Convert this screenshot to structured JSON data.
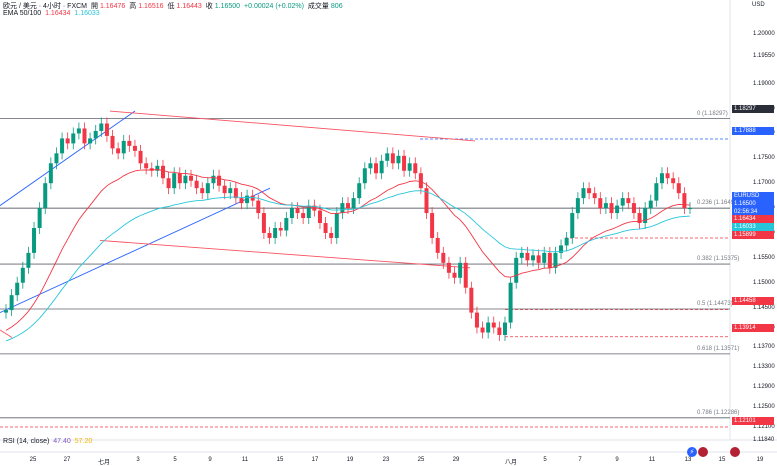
{
  "header": {
    "symbol_line": "欧元 / 美元 · 4小时 · FXCM",
    "open_label": "開",
    "open_value": "1.16476",
    "high_label": "高",
    "high_value": "1.16516",
    "low_label": "低",
    "low_value": "1.16443",
    "close_label": "收",
    "close_value": "1.16500",
    "change": "+0.00024 (+0.02%)",
    "volume_label": "成交量",
    "volume_value": "806",
    "ema_label": "EMA 50/100",
    "ema50_value": "1.16434",
    "ema100_value": "1.16033",
    "rsi_label": "RSI (14, close)",
    "rsi_value": "47.40",
    "rsi_ma_value": "57.20"
  },
  "axis": {
    "currency": "USD",
    "price_labels": [
      "1.20000",
      "1.19550",
      "1.19000",
      "1.18500",
      "1.18000",
      "1.17500",
      "1.17000",
      "1.16500",
      "1.16000",
      "1.15500",
      "1.15000",
      "1.14500",
      "1.14100",
      "1.13700",
      "1.13300",
      "1.12900",
      "1.12500",
      "1.12100",
      "1.11840"
    ],
    "date_labels": [
      "25",
      "27",
      "七月",
      "3",
      "5",
      "9",
      "11",
      "15",
      "17",
      "19",
      "23",
      "25",
      "29",
      "八月",
      "5",
      "7",
      "9",
      "11",
      "13",
      "15",
      "19"
    ]
  },
  "fib_levels": [
    {
      "label": "0 (1.18297)"
    },
    {
      "label": "0.236 (1.16497)"
    },
    {
      "label": "0.382 (1.15375)"
    },
    {
      "label": "0.5 (1.14473)"
    },
    {
      "label": "0.618 (1.13571)"
    },
    {
      "label": "0.786 (1.12286)"
    }
  ],
  "price_tags": [
    {
      "text": "1.18297",
      "color": "#2a2e39"
    },
    {
      "text": "1.17888",
      "color": "#2962ff"
    },
    {
      "text": "EURUSD",
      "color": "#2962ff"
    },
    {
      "text": "1.16500",
      "color": "#2962ff"
    },
    {
      "text": "02:56:34",
      "color": "#2962ff"
    },
    {
      "text": "1.16434",
      "color": "#f23645"
    },
    {
      "text": "1.16033",
      "color": "#26c6da"
    },
    {
      "text": "1.15899",
      "color": "#f23645"
    },
    {
      "text": "1.14458",
      "color": "#f23645"
    },
    {
      "text": "1.13914",
      "color": "#f23645"
    },
    {
      "text": "1.12101",
      "color": "#f23645"
    }
  ],
  "colors": {
    "up": "#089981",
    "down": "#f23645",
    "ema50": "#f23645",
    "ema100": "#26c6da",
    "trend_blue": "#2962ff",
    "channel_pink": "#f7525f",
    "fib_line": "#5d606b"
  },
  "chart_data": {
    "type": "candlestick",
    "symbol": "EURUSD",
    "timeframe": "4h",
    "ylim": [
      1.1184,
      1.204
    ],
    "fib_levels": [
      1.18297,
      1.16497,
      1.15375,
      1.14473,
      1.13571,
      1.12286
    ],
    "marked_levels": [
      1.17888,
      1.15899,
      1.14458,
      1.13914,
      1.12101
    ],
    "last_price": 1.165,
    "ema50_last": 1.16434,
    "ema100_last": 1.16033,
    "closes": [
      1.1445,
      1.1475,
      1.15,
      1.153,
      1.156,
      1.161,
      1.165,
      1.17,
      1.174,
      1.176,
      1.179,
      1.178,
      1.18,
      1.181,
      1.178,
      1.179,
      1.1805,
      1.182,
      1.1795,
      1.177,
      1.176,
      1.1785,
      1.1775,
      1.1765,
      1.174,
      1.173,
      1.1725,
      1.1735,
      1.171,
      1.169,
      1.172,
      1.17,
      1.1715,
      1.1705,
      1.169,
      1.168,
      1.17,
      1.1715,
      1.1695,
      1.168,
      1.169,
      1.167,
      1.166,
      1.1675,
      1.1665,
      1.164,
      1.16,
      1.159,
      1.161,
      1.1605,
      1.163,
      1.165,
      1.164,
      1.163,
      1.1655,
      1.1645,
      1.162,
      1.16,
      1.159,
      1.164,
      1.166,
      1.165,
      1.167,
      1.17,
      1.173,
      1.174,
      1.172,
      1.1745,
      1.176,
      1.174,
      1.1755,
      1.1725,
      1.174,
      1.172,
      1.169,
      1.164,
      1.159,
      1.156,
      1.154,
      1.152,
      1.151,
      1.154,
      1.149,
      1.144,
      1.141,
      1.14,
      1.142,
      1.141,
      1.1395,
      1.142,
      1.15,
      1.155,
      1.156,
      1.1545,
      1.1555,
      1.154,
      1.156,
      1.153,
      1.156,
      1.1575,
      1.159,
      1.164,
      1.167,
      1.169,
      1.168,
      1.167,
      1.165,
      1.166,
      1.164,
      1.1655,
      1.167,
      1.166,
      1.164,
      1.162,
      1.165,
      1.1665,
      1.17,
      1.172,
      1.171,
      1.17,
      1.168,
      1.165,
      1.165
    ]
  }
}
